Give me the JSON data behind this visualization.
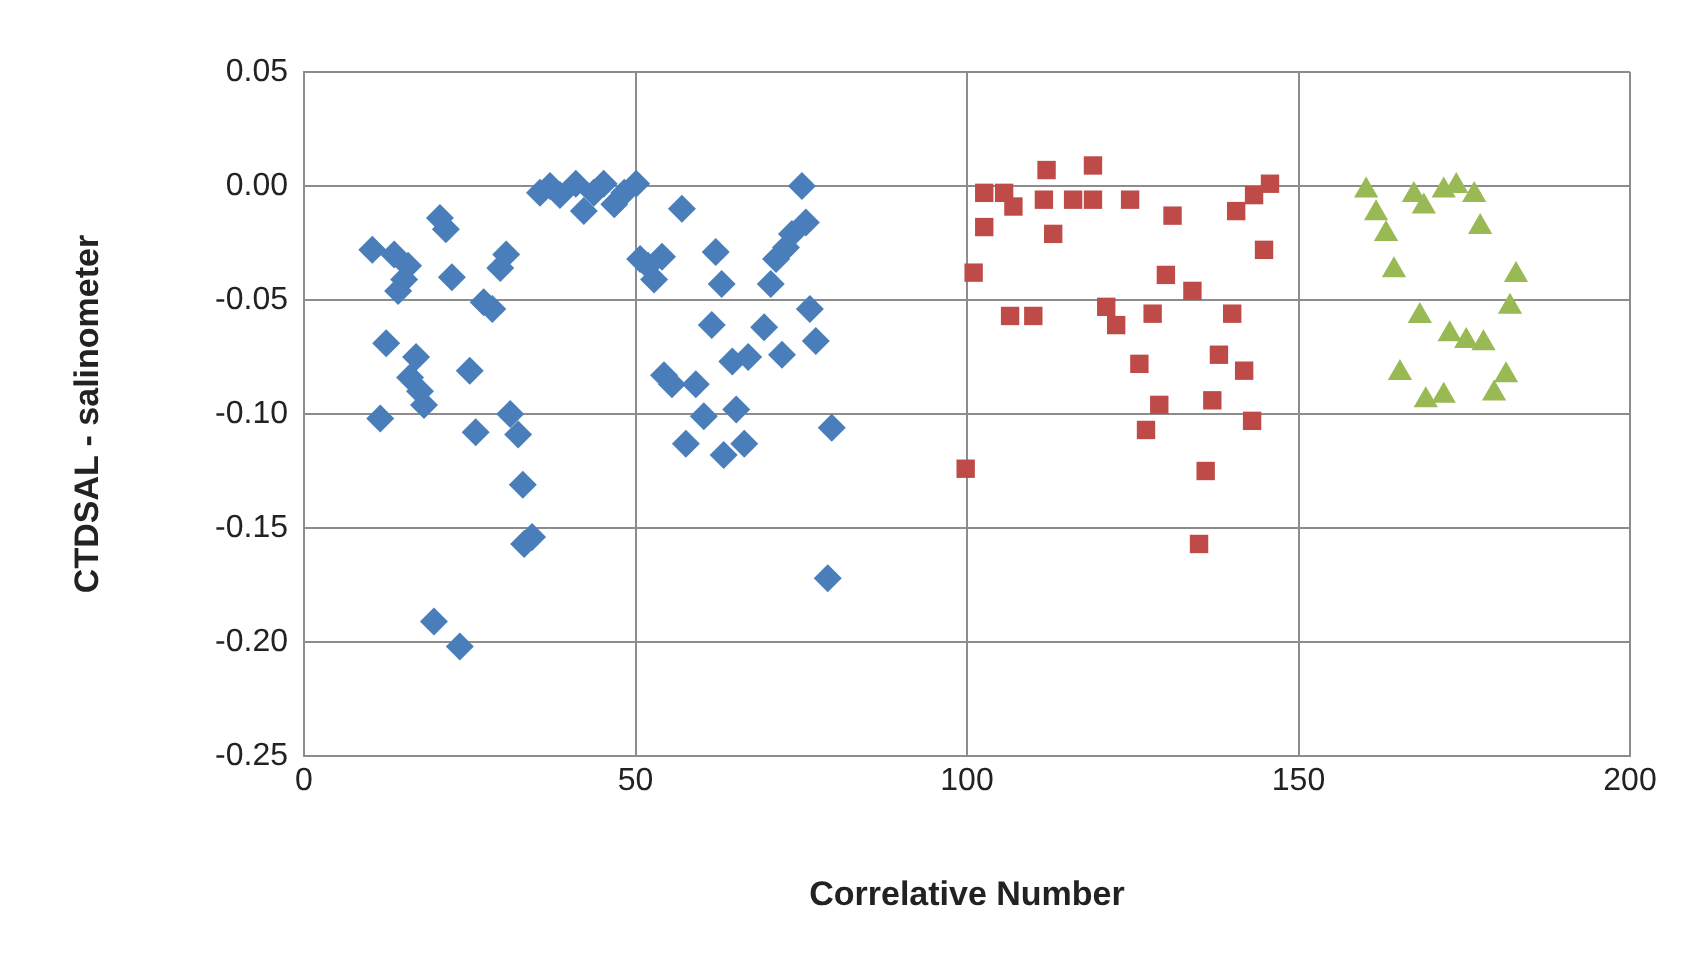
{
  "chart_data": {
    "type": "scatter",
    "xlabel": "Correlative Number",
    "ylabel": "CTDSAL - salinometer",
    "xlim": [
      0,
      200
    ],
    "xticks": [
      0,
      50,
      100,
      150,
      200
    ],
    "ylim": [
      -0.25,
      0.05
    ],
    "yticks": [
      0.05,
      {
        "value": 0,
        "label": "0.00"
      },
      -0.05,
      {
        "value": -0.1,
        "label": "-0.10"
      },
      -0.15,
      {
        "value": -0.2,
        "label": "-0.20"
      },
      -0.25
    ],
    "grid": true,
    "legend": false,
    "series": [
      {
        "color": "#4a7ebb",
        "marker": "diamond",
        "x": [
          10.3,
          11.5,
          12.4,
          13.6,
          14.2,
          15.1,
          15.7,
          16,
          16.9,
          17.5,
          18.1,
          19.6,
          20.5,
          21.4,
          22.3,
          23.5,
          25,
          25.9,
          27.1,
          28.4,
          29.6,
          30.5,
          31.1,
          32.3,
          33,
          33.2,
          34.4,
          35.6,
          37.1,
          38.6,
          41,
          42.2,
          43.7,
          45.2,
          46.8,
          48.3,
          50.1,
          50.7,
          51.9,
          52.8,
          54,
          54.3,
          55.5,
          57,
          57.6,
          59.1,
          60.3,
          61.5,
          62.1,
          63,
          63.3,
          64.6,
          65.2,
          66.4,
          67,
          69.4,
          70.4,
          71.2,
          72.1,
          72.7,
          73.6,
          75.1,
          75.7,
          76.3,
          77.2,
          79.6,
          79
        ],
        "values": [
          -0.028,
          -0.102,
          -0.069,
          -0.03,
          -0.046,
          -0.041,
          -0.035,
          -0.084,
          -0.075,
          -0.09,
          -0.096,
          -0.191,
          -0.014,
          -0.019,
          -0.04,
          -0.202,
          -0.081,
          -0.108,
          -0.051,
          -0.054,
          -0.036,
          -0.03,
          -0.1,
          -0.109,
          -0.131,
          -0.157,
          -0.154,
          -0.003,
          0,
          -0.004,
          0.001,
          -0.011,
          -0.003,
          0.001,
          -0.008,
          -0.003,
          0.001,
          -0.032,
          -0.035,
          -0.041,
          -0.031,
          -0.083,
          -0.087,
          -0.01,
          -0.113,
          -0.087,
          -0.101,
          -0.061,
          -0.029,
          -0.043,
          -0.118,
          -0.077,
          -0.098,
          -0.113,
          -0.075,
          -0.062,
          -0.043,
          -0.032,
          -0.074,
          -0.027,
          -0.021,
          0,
          -0.016,
          -0.054,
          -0.068,
          -0.106,
          -0.172
        ]
      },
      {
        "color": "#be4b48",
        "marker": "square",
        "x": [
          102.6,
          102.6,
          101,
          99.8,
          105.6,
          106.5,
          110,
          112,
          111.6,
          113,
          116,
          119,
          119,
          124.6,
          121,
          122.5,
          126,
          128,
          131,
          130,
          134,
          129,
          127,
          136,
          135,
          140,
          138,
          141.8,
          137,
          143,
          140.6,
          144.8,
          143.3,
          145.7,
          107
        ],
        "values": [
          -0.003,
          -0.018,
          -0.038,
          -0.124,
          -0.003,
          -0.057,
          -0.057,
          0.007,
          -0.006,
          -0.021,
          -0.006,
          0.009,
          -0.006,
          -0.006,
          -0.053,
          -0.061,
          -0.078,
          -0.056,
          -0.013,
          -0.039,
          -0.046,
          -0.096,
          -0.107,
          -0.125,
          -0.157,
          -0.056,
          -0.074,
          -0.081,
          -0.094,
          -0.103,
          -0.011,
          -0.028,
          -0.004,
          0.001,
          -0.009
        ]
      },
      {
        "color": "#98b954",
        "marker": "triangle",
        "x": [
          160.2,
          161.7,
          163.2,
          164.4,
          167.4,
          168.9,
          171.9,
          173.8,
          176.5,
          177.4,
          182.8,
          181.9,
          168.3,
          172.8,
          175.3,
          177.9,
          165.3,
          181.3,
          179.5,
          169.2,
          171.9
        ],
        "values": [
          -0.002,
          -0.012,
          -0.021,
          -0.037,
          -0.004,
          -0.009,
          -0.002,
          0,
          -0.004,
          -0.018,
          -0.039,
          -0.053,
          -0.057,
          -0.065,
          -0.068,
          -0.069,
          -0.082,
          -0.083,
          -0.091,
          -0.094,
          -0.092
        ]
      }
    ]
  }
}
